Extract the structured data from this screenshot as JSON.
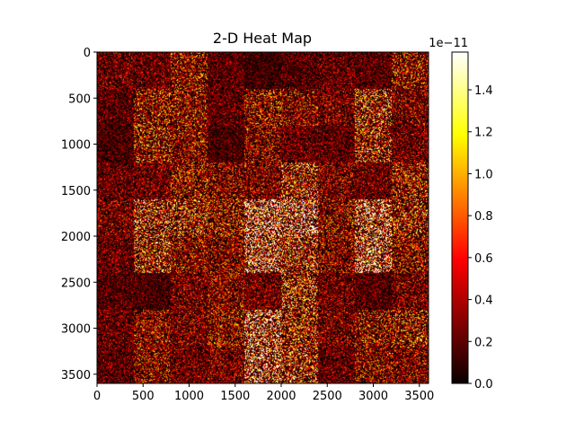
{
  "chart_data": {
    "type": "heatmap",
    "title": "2-D Heat Map",
    "xlabel": "",
    "ylabel": "",
    "xlim": [
      0,
      3600
    ],
    "ylim": [
      3600,
      0
    ],
    "x_ticks": [
      "0",
      "500",
      "1000",
      "1500",
      "2000",
      "2500",
      "3000",
      "3500"
    ],
    "y_ticks": [
      "0",
      "500",
      "1000",
      "1500",
      "2000",
      "2500",
      "3000",
      "3500"
    ],
    "x_tick_values": [
      0,
      500,
      1000,
      1500,
      2000,
      2500,
      3000,
      3500
    ],
    "y_tick_values": [
      0,
      500,
      1000,
      1500,
      2000,
      2500,
      3000,
      3500
    ],
    "colormap": "hot",
    "colorbar": {
      "range": [
        0.0,
        1.58
      ],
      "ticks": [
        "0.0",
        "0.2",
        "0.4",
        "0.6",
        "0.8",
        "1.0",
        "1.2",
        "1.4"
      ],
      "tick_values": [
        0.0,
        0.2,
        0.4,
        0.6,
        0.8,
        1.0,
        1.2,
        1.4
      ],
      "multiplier": "1e−11"
    },
    "block_size": 400,
    "block_edges_x": [
      0,
      400,
      800,
      1200,
      1600,
      2000,
      2400,
      2800,
      3200,
      3600
    ],
    "block_edges_y": [
      0,
      400,
      800,
      1200,
      1600,
      2000,
      2400,
      2800,
      3200,
      3600
    ],
    "block_mean_intensity": [
      [
        0.2,
        0.18,
        0.3,
        0.15,
        0.1,
        0.14,
        0.18,
        0.16,
        0.3
      ],
      [
        0.16,
        0.32,
        0.3,
        0.16,
        0.3,
        0.28,
        0.22,
        0.4,
        0.24
      ],
      [
        0.12,
        0.34,
        0.28,
        0.12,
        0.26,
        0.18,
        0.16,
        0.38,
        0.2
      ],
      [
        0.18,
        0.2,
        0.3,
        0.26,
        0.24,
        0.4,
        0.24,
        0.2,
        0.34
      ],
      [
        0.22,
        0.42,
        0.38,
        0.32,
        0.62,
        0.6,
        0.28,
        0.52,
        0.36
      ],
      [
        0.18,
        0.4,
        0.28,
        0.26,
        0.58,
        0.42,
        0.26,
        0.56,
        0.3
      ],
      [
        0.14,
        0.12,
        0.22,
        0.26,
        0.2,
        0.4,
        0.2,
        0.14,
        0.22
      ],
      [
        0.18,
        0.28,
        0.22,
        0.3,
        0.56,
        0.38,
        0.22,
        0.3,
        0.34
      ],
      [
        0.16,
        0.28,
        0.2,
        0.22,
        0.56,
        0.4,
        0.18,
        0.28,
        0.26
      ]
    ]
  }
}
